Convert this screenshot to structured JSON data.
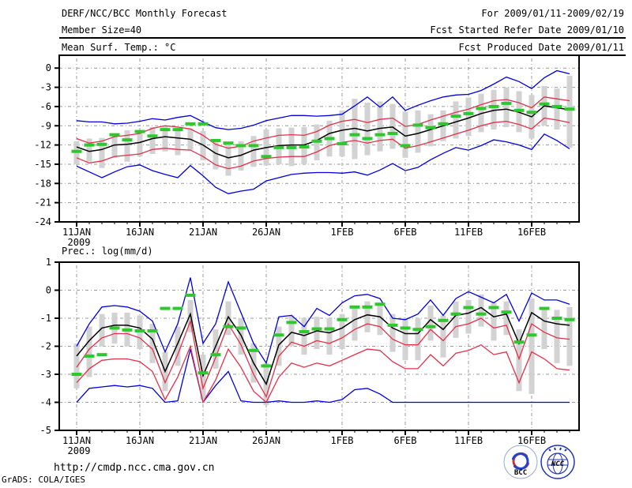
{
  "header": {
    "title": "DERF/NCC/BCC Monthly Forecast",
    "member_size": "Member Size=40",
    "for_range": "For 2009/01/11-2009/02/19",
    "fcst_started": "Fcst Started Refer Date 2009/01/10",
    "fcst_produced": "Fcst Produced Date 2009/01/11"
  },
  "footer": {
    "url": "http://cmdp.ncc.cma.gov.cn",
    "credit": "GrADS: COLA/IGES",
    "bcc_logo_text": "BCC",
    "ncc_logo_text": "NCC"
  },
  "colors": {
    "blue": "#0000dd",
    "red": "#e33049",
    "black": "#000000",
    "green": "#2ec82e",
    "bar_gray": "#d2d2d2",
    "grid_gray": "#999999",
    "url_blue": "#000080",
    "logo_navy": "#223a99",
    "logo_red": "#cc3333"
  },
  "chart_data": [
    {
      "type": "line",
      "title": "Mean Surf. Temp.: °C",
      "ylabel": "°C",
      "ylim": [
        -24,
        2
      ],
      "yticks": [
        0,
        -3,
        -6,
        -9,
        -12,
        -15,
        -18,
        -21,
        -24
      ],
      "grid": true,
      "x_start_label": "11JAN",
      "x_start_year": "2009",
      "xticks": [
        {
          "day": 0,
          "label": "11JAN",
          "sublabel": "2009"
        },
        {
          "day": 5,
          "label": "16JAN"
        },
        {
          "day": 10,
          "label": "21JAN"
        },
        {
          "day": 15,
          "label": "26JAN"
        },
        {
          "day": 21,
          "label": "1FEB"
        },
        {
          "day": 26,
          "label": "6FEB"
        },
        {
          "day": 31,
          "label": "11FEB"
        },
        {
          "day": 36,
          "label": "16FEB"
        }
      ],
      "series": [
        {
          "name": "ensemble-max",
          "color": "blue",
          "values": [
            -8.2,
            -8.4,
            -8.4,
            -8.7,
            -8.6,
            -8.3,
            -7.9,
            -8.1,
            -7.7,
            -7.4,
            -8.4,
            -9.3,
            -9.6,
            -9.4,
            -8.9,
            -8.2,
            -7.8,
            -7.4,
            -7.4,
            -7.5,
            -7.4,
            -7.2,
            -5.9,
            -4.5,
            -6.1,
            -4.5,
            -6.6,
            -5.8,
            -5.1,
            -4.5,
            -4.2,
            -4.1,
            -3.5,
            -2.5,
            -1.4,
            -2.1,
            -3.2,
            -1.5,
            -0.4,
            -0.9
          ]
        },
        {
          "name": "upper-spread",
          "color": "red",
          "values": [
            -11.0,
            -11.7,
            -11.4,
            -10.7,
            -10.5,
            -10.2,
            -9.4,
            -9.0,
            -9.2,
            -9.5,
            -10.5,
            -11.9,
            -12.5,
            -12.2,
            -11.4,
            -10.9,
            -10.5,
            -10.4,
            -10.5,
            -9.9,
            -8.9,
            -8.3,
            -8.0,
            -8.5,
            -8.0,
            -7.8,
            -9.1,
            -8.8,
            -8.1,
            -7.5,
            -6.9,
            -6.4,
            -5.7,
            -5.1,
            -4.9,
            -5.4,
            -6.2,
            -4.5,
            -4.8,
            -5.1
          ]
        },
        {
          "name": "ensemble-mean",
          "color": "black",
          "values": [
            -12.3,
            -13.0,
            -12.7,
            -12.0,
            -11.9,
            -11.6,
            -11.0,
            -10.7,
            -10.9,
            -11.1,
            -12.0,
            -13.3,
            -14.0,
            -13.6,
            -12.8,
            -12.4,
            -12.1,
            -12.0,
            -12.0,
            -11.3,
            -10.2,
            -9.7,
            -9.4,
            -9.8,
            -9.4,
            -9.2,
            -10.6,
            -10.2,
            -9.6,
            -9.0,
            -8.4,
            -7.8,
            -7.1,
            -6.6,
            -6.4,
            -6.9,
            -7.6,
            -5.9,
            -6.2,
            -6.5
          ]
        },
        {
          "name": "lower-spread",
          "color": "red",
          "values": [
            -14.0,
            -14.8,
            -14.5,
            -13.8,
            -13.6,
            -13.4,
            -12.7,
            -12.5,
            -12.7,
            -12.8,
            -13.8,
            -15.1,
            -15.7,
            -15.3,
            -14.5,
            -14.1,
            -13.9,
            -13.8,
            -13.8,
            -13.1,
            -12.1,
            -11.6,
            -11.3,
            -11.7,
            -11.3,
            -11.1,
            -12.5,
            -12.1,
            -11.5,
            -10.9,
            -10.3,
            -9.7,
            -9.0,
            -8.5,
            -8.3,
            -8.8,
            -9.5,
            -7.8,
            -8.1,
            -8.5
          ]
        },
        {
          "name": "ensemble-min",
          "color": "blue",
          "values": [
            -15.3,
            -16.2,
            -17.1,
            -16.2,
            -15.4,
            -15.1,
            -16.0,
            -16.6,
            -17.1,
            -15.2,
            -16.8,
            -18.6,
            -19.6,
            -19.2,
            -18.9,
            -17.6,
            -17.1,
            -16.6,
            -16.4,
            -16.3,
            -16.3,
            -16.4,
            -16.2,
            -16.7,
            -15.9,
            -14.9,
            -16.0,
            -15.5,
            -14.3,
            -13.3,
            -12.4,
            -12.8,
            -12.1,
            -11.2,
            -11.5,
            -12.0,
            -12.7,
            -10.3,
            -11.3,
            -12.6
          ]
        }
      ],
      "green_dashes": {
        "name": "observation-dashes",
        "values": [
          -13.0,
          -12.0,
          -11.9,
          -10.4,
          -11.2,
          -9.9,
          -10.6,
          -9.6,
          -9.6,
          -8.7,
          -8.7,
          -11.3,
          -11.7,
          -12.1,
          -12.1,
          -13.8,
          -12.4,
          -12.4,
          -12.3,
          -11.4,
          -11.0,
          -11.8,
          -10.4,
          -11.0,
          -10.4,
          -10.2,
          -12.1,
          -8.9,
          -9.3,
          -8.7,
          -7.5,
          -7.1,
          -6.3,
          -6.0,
          -5.5,
          -6.6,
          -6.9,
          -5.6,
          -6.0,
          -6.4
        ]
      },
      "gray_bars": {
        "name": "member-spread-bars",
        "ranges": [
          [
            -15.0,
            -11.4
          ],
          [
            -14.6,
            -11.0
          ],
          [
            -15.6,
            -10.9
          ],
          [
            -14.0,
            -10.2
          ],
          [
            -14.6,
            -9.7
          ],
          [
            -13.8,
            -9.8
          ],
          [
            -13.4,
            -9.2
          ],
          [
            -13.0,
            -9.0
          ],
          [
            -13.6,
            -9.3
          ],
          [
            -12.8,
            -9.4
          ],
          [
            -14.4,
            -9.8
          ],
          [
            -15.8,
            -11.2
          ],
          [
            -16.8,
            -11.6
          ],
          [
            -16.0,
            -11.4
          ],
          [
            -15.4,
            -10.6
          ],
          [
            -15.2,
            -9.6
          ],
          [
            -15.0,
            -9.4
          ],
          [
            -15.3,
            -9.3
          ],
          [
            -15.0,
            -9.2
          ],
          [
            -14.4,
            -8.8
          ],
          [
            -13.8,
            -8.2
          ],
          [
            -13.8,
            -6.6
          ],
          [
            -14.2,
            -4.8
          ],
          [
            -13.6,
            -5.4
          ],
          [
            -13.0,
            -5.2
          ],
          [
            -12.6,
            -5.6
          ],
          [
            -14.0,
            -6.8
          ],
          [
            -13.2,
            -6.6
          ],
          [
            -12.2,
            -7.2
          ],
          [
            -11.4,
            -6.6
          ],
          [
            -11.0,
            -5.2
          ],
          [
            -10.6,
            -4.6
          ],
          [
            -10.0,
            -4.0
          ],
          [
            -9.6,
            -3.4
          ],
          [
            -9.2,
            -3.0
          ],
          [
            -10.0,
            -3.6
          ],
          [
            -11.0,
            -4.2
          ],
          [
            -9.0,
            -2.8
          ],
          [
            -9.6,
            -3.2
          ],
          [
            -12.4,
            -1.2
          ]
        ]
      }
    },
    {
      "type": "line",
      "title": "Prec.: log(mm/d)",
      "ylabel": "log(mm/d)",
      "ylim": [
        -5,
        1
      ],
      "yticks": [
        1,
        0,
        -1,
        -2,
        -3,
        -4,
        -5
      ],
      "grid": true,
      "x_start_label": "11JAN",
      "x_start_year": "2009",
      "xticks": [
        {
          "day": 0,
          "label": "11JAN",
          "sublabel": "2009"
        },
        {
          "day": 5,
          "label": "16JAN"
        },
        {
          "day": 10,
          "label": "21JAN"
        },
        {
          "day": 15,
          "label": "26JAN"
        },
        {
          "day": 21,
          "label": "1FEB"
        },
        {
          "day": 26,
          "label": "6FEB"
        },
        {
          "day": 31,
          "label": "11FEB"
        },
        {
          "day": 36,
          "label": "16FEB"
        }
      ],
      "series": [
        {
          "name": "ensemble-max",
          "color": "blue",
          "values": [
            -2.0,
            -1.2,
            -0.6,
            -0.55,
            -0.6,
            -0.75,
            -1.1,
            -2.2,
            -1.2,
            0.45,
            -1.9,
            -1.2,
            0.3,
            -0.8,
            -1.9,
            -2.6,
            -0.95,
            -0.9,
            -1.3,
            -0.65,
            -0.9,
            -0.45,
            -0.2,
            -0.15,
            -0.3,
            -1.0,
            -1.05,
            -0.85,
            -0.35,
            -0.9,
            -0.3,
            -0.05,
            -0.25,
            -0.45,
            -0.15,
            -1.1,
            -0.1,
            -0.35,
            -0.35,
            -0.5
          ]
        },
        {
          "name": "ensemble-mean",
          "color": "black",
          "values": [
            -2.35,
            -1.8,
            -1.35,
            -1.25,
            -1.25,
            -1.35,
            -1.75,
            -2.9,
            -1.9,
            -0.85,
            -3.05,
            -2.0,
            -0.95,
            -1.6,
            -2.6,
            -3.35,
            -1.95,
            -1.5,
            -1.62,
            -1.45,
            -1.52,
            -1.35,
            -1.05,
            -0.88,
            -0.95,
            -1.35,
            -1.55,
            -1.55,
            -1.05,
            -1.4,
            -0.9,
            -0.82,
            -0.62,
            -0.95,
            -0.85,
            -1.9,
            -0.8,
            -1.1,
            -1.2,
            -1.25
          ]
        },
        {
          "name": "upper-spread",
          "color": "red",
          "values": [
            -2.75,
            -2.1,
            -1.7,
            -1.55,
            -1.55,
            -1.7,
            -2.1,
            -3.3,
            -2.3,
            -1.1,
            -3.5,
            -2.4,
            -1.2,
            -1.95,
            -3.0,
            -3.8,
            -2.35,
            -1.85,
            -2.0,
            -1.8,
            -1.9,
            -1.7,
            -1.4,
            -1.2,
            -1.3,
            -1.75,
            -1.95,
            -1.95,
            -1.4,
            -1.8,
            -1.3,
            -1.2,
            -1.0,
            -1.35,
            -1.25,
            -2.45,
            -1.2,
            -1.5,
            -1.7,
            -1.75
          ]
        },
        {
          "name": "lower-spread",
          "color": "red",
          "values": [
            -3.3,
            -2.8,
            -2.5,
            -2.45,
            -2.45,
            -2.55,
            -2.9,
            -3.9,
            -3.1,
            -2.0,
            -4.0,
            -3.2,
            -2.1,
            -2.75,
            -3.6,
            -4.0,
            -3.1,
            -2.6,
            -2.75,
            -2.6,
            -2.7,
            -2.5,
            -2.3,
            -2.1,
            -2.15,
            -2.55,
            -2.8,
            -2.8,
            -2.3,
            -2.7,
            -2.25,
            -2.15,
            -1.95,
            -2.3,
            -2.2,
            -3.3,
            -2.2,
            -2.45,
            -2.8,
            -2.85
          ]
        },
        {
          "name": "ensemble-min",
          "color": "blue",
          "values": [
            -4.0,
            -3.5,
            -3.45,
            -3.4,
            -3.45,
            -3.4,
            -3.5,
            -4.0,
            -3.95,
            -2.1,
            -4.0,
            -3.4,
            -2.9,
            -3.95,
            -4.0,
            -4.0,
            -3.95,
            -4.0,
            -4.0,
            -3.95,
            -4.0,
            -3.9,
            -3.55,
            -3.5,
            -3.7,
            -4.0,
            -4.0,
            -4.0,
            -4.0,
            -4.0,
            -4.0,
            -4.0,
            -4.0,
            -4.0,
            -4.0,
            -4.0,
            -4.0,
            -4.0,
            -4.0,
            -4.0
          ]
        }
      ],
      "green_dashes": {
        "name": "observation-dashes",
        "values": [
          -3.0,
          -2.35,
          -2.3,
          -1.35,
          -1.42,
          -1.45,
          -1.45,
          -0.65,
          -0.65,
          -0.18,
          -2.95,
          -2.3,
          -1.3,
          -1.35,
          -2.15,
          -2.7,
          -1.6,
          -1.15,
          -1.48,
          -1.38,
          -1.38,
          -1.05,
          -0.6,
          -0.6,
          -0.5,
          -1.25,
          -1.35,
          -1.4,
          -1.3,
          -1.08,
          -0.85,
          -0.62,
          -0.85,
          -0.62,
          -0.78,
          -1.85,
          -1.6,
          -0.65,
          -1.0,
          -1.05
        ]
      },
      "gray_bars": {
        "name": "member-spread-bars",
        "ranges": [
          [
            -3.5,
            -1.9
          ],
          [
            -3.1,
            -1.3
          ],
          [
            -2.0,
            -0.85
          ],
          [
            -1.9,
            -0.8
          ],
          [
            -2.0,
            -0.8
          ],
          [
            -2.1,
            -0.9
          ],
          [
            -2.6,
            -1.2
          ],
          [
            -3.6,
            -2.2
          ],
          [
            -2.7,
            -1.3
          ],
          [
            -1.5,
            -0.35
          ],
          [
            -3.9,
            -2.3
          ],
          [
            -2.8,
            -1.4
          ],
          [
            -1.6,
            -0.4
          ],
          [
            -2.3,
            -1.0
          ],
          [
            -3.3,
            -1.9
          ],
          [
            -4.1,
            -2.6
          ],
          [
            -2.7,
            -1.3
          ],
          [
            -2.0,
            -0.9
          ],
          [
            -2.3,
            -1.0
          ],
          [
            -2.1,
            -0.95
          ],
          [
            -2.3,
            -1.0
          ],
          [
            -2.1,
            -0.85
          ],
          [
            -1.8,
            -0.6
          ],
          [
            -1.5,
            -0.4
          ],
          [
            -1.6,
            -0.45
          ],
          [
            -2.2,
            -0.85
          ],
          [
            -2.5,
            -1.0
          ],
          [
            -2.5,
            -1.0
          ],
          [
            -1.8,
            -0.55
          ],
          [
            -2.4,
            -0.9
          ],
          [
            -1.7,
            -0.4
          ],
          [
            -1.55,
            -0.35
          ],
          [
            -1.3,
            -0.15
          ],
          [
            -1.8,
            -0.45
          ],
          [
            -1.6,
            -0.4
          ],
          [
            -3.6,
            -1.4
          ],
          [
            -3.7,
            -0.3
          ],
          [
            -2.1,
            -0.6
          ],
          [
            -2.6,
            -0.7
          ],
          [
            -2.7,
            -0.6
          ]
        ]
      }
    }
  ]
}
